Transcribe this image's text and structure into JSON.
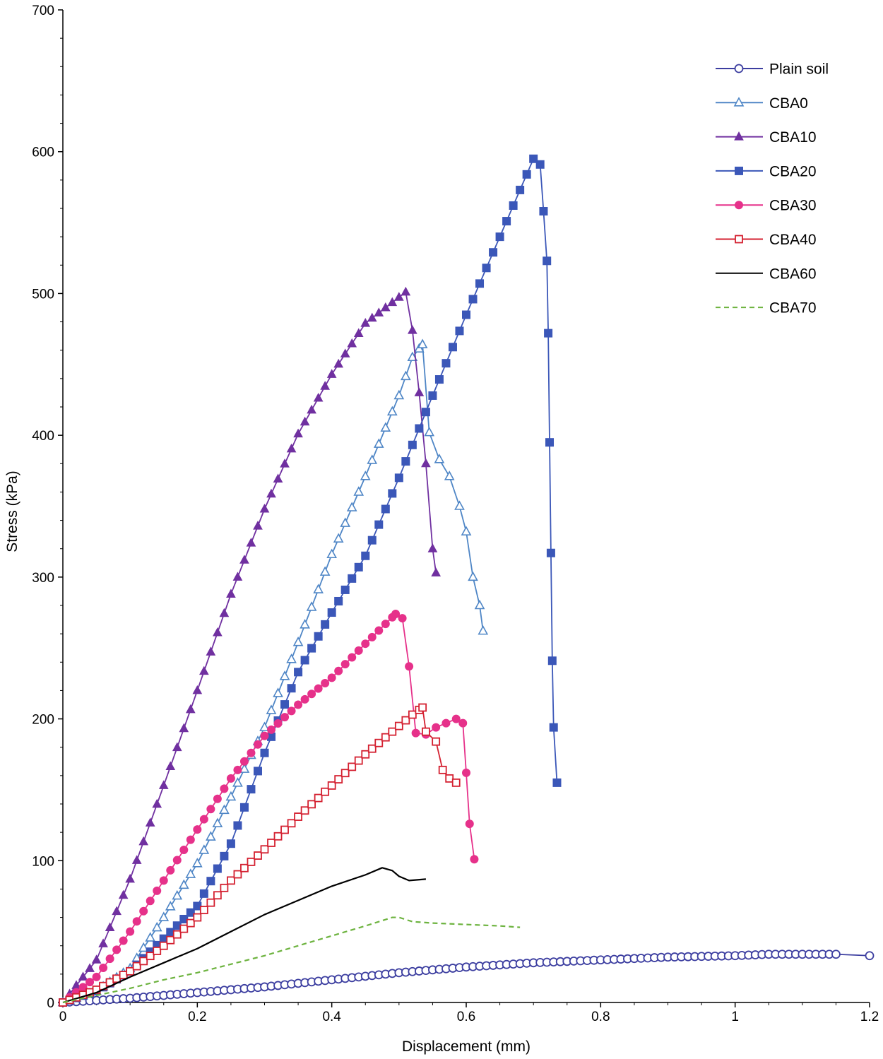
{
  "chart_data": {
    "type": "line",
    "title": "",
    "xlabel": "Displacement (mm)",
    "ylabel": "Stress  (kPa)",
    "xlim": [
      0,
      1.2
    ],
    "ylim": [
      0,
      700
    ],
    "x_ticks": [
      0,
      0.2,
      0.4,
      0.6,
      0.8,
      1,
      1.2
    ],
    "x_tick_labels": [
      "0",
      "0.2",
      "0.4",
      "0.6",
      "0.8",
      "1",
      "1.2"
    ],
    "y_ticks": [
      0,
      100,
      200,
      300,
      400,
      500,
      600,
      700
    ],
    "y_tick_labels": [
      "0",
      "100",
      "200",
      "300",
      "400",
      "500",
      "600",
      "700"
    ],
    "grid": false,
    "legend_position": "top-right",
    "series": [
      {
        "name": "Plain soil",
        "color": "#3c3ea0",
        "marker": "circle-open",
        "marker_step": 0.01,
        "dash": false,
        "points": [
          [
            0,
            0
          ],
          [
            0.1,
            3
          ],
          [
            0.2,
            7
          ],
          [
            0.3,
            11
          ],
          [
            0.4,
            16
          ],
          [
            0.5,
            21
          ],
          [
            0.6,
            25
          ],
          [
            0.7,
            28
          ],
          [
            0.8,
            30
          ],
          [
            0.9,
            32
          ],
          [
            1.0,
            33
          ],
          [
            1.05,
            34
          ],
          [
            1.1,
            34
          ],
          [
            1.15,
            34
          ],
          [
            1.2,
            33
          ]
        ]
      },
      {
        "name": "CBA0",
        "color": "#4f86c6",
        "marker": "triangle-open",
        "marker_step": 0.01,
        "dash": false,
        "points": [
          [
            0,
            0
          ],
          [
            0.05,
            8
          ],
          [
            0.1,
            24
          ],
          [
            0.15,
            60
          ],
          [
            0.2,
            98
          ],
          [
            0.25,
            145
          ],
          [
            0.3,
            194
          ],
          [
            0.35,
            254
          ],
          [
            0.4,
            316
          ],
          [
            0.45,
            371
          ],
          [
            0.5,
            428
          ],
          [
            0.52,
            455
          ],
          [
            0.535,
            464
          ],
          [
            0.545,
            402
          ],
          [
            0.56,
            383
          ],
          [
            0.575,
            371
          ],
          [
            0.59,
            350
          ],
          [
            0.6,
            332
          ],
          [
            0.61,
            300
          ],
          [
            0.62,
            280
          ],
          [
            0.625,
            262
          ]
        ]
      },
      {
        "name": "CBA10",
        "color": "#7030a0",
        "marker": "triangle-filled",
        "marker_step": 0.01,
        "dash": false,
        "points": [
          [
            0,
            0
          ],
          [
            0.05,
            30
          ],
          [
            0.1,
            87
          ],
          [
            0.15,
            153
          ],
          [
            0.2,
            220
          ],
          [
            0.25,
            288
          ],
          [
            0.3,
            348
          ],
          [
            0.35,
            401
          ],
          [
            0.4,
            443
          ],
          [
            0.45,
            479
          ],
          [
            0.51,
            501
          ],
          [
            0.52,
            474
          ],
          [
            0.53,
            430
          ],
          [
            0.54,
            380
          ],
          [
            0.55,
            320
          ],
          [
            0.555,
            303
          ]
        ]
      },
      {
        "name": "CBA20",
        "color": "#3b57b8",
        "marker": "square-filled",
        "marker_step": 0.01,
        "dash": false,
        "points": [
          [
            0,
            0
          ],
          [
            0.05,
            8
          ],
          [
            0.1,
            22
          ],
          [
            0.15,
            45
          ],
          [
            0.2,
            68
          ],
          [
            0.25,
            112
          ],
          [
            0.3,
            176
          ],
          [
            0.35,
            233
          ],
          [
            0.4,
            275
          ],
          [
            0.45,
            315
          ],
          [
            0.5,
            370
          ],
          [
            0.55,
            428
          ],
          [
            0.6,
            485
          ],
          [
            0.65,
            540
          ],
          [
            0.7,
            595
          ],
          [
            0.71,
            591
          ],
          [
            0.715,
            558
          ],
          [
            0.72,
            523
          ],
          [
            0.722,
            472
          ],
          [
            0.724,
            395
          ],
          [
            0.726,
            317
          ],
          [
            0.728,
            241
          ],
          [
            0.73,
            194
          ],
          [
            0.735,
            155
          ]
        ]
      },
      {
        "name": "CBA30",
        "color": "#e6318a",
        "marker": "circle-filled",
        "marker_step": 0.01,
        "dash": false,
        "points": [
          [
            0,
            0
          ],
          [
            0.05,
            18
          ],
          [
            0.1,
            50
          ],
          [
            0.15,
            86
          ],
          [
            0.2,
            122
          ],
          [
            0.25,
            158
          ],
          [
            0.3,
            188
          ],
          [
            0.35,
            210
          ],
          [
            0.4,
            229
          ],
          [
            0.45,
            253
          ],
          [
            0.495,
            274
          ],
          [
            0.505,
            271
          ],
          [
            0.515,
            237
          ],
          [
            0.525,
            190
          ],
          [
            0.54,
            189
          ],
          [
            0.555,
            194
          ],
          [
            0.57,
            197
          ],
          [
            0.585,
            200
          ],
          [
            0.595,
            197
          ],
          [
            0.6,
            162
          ],
          [
            0.605,
            126
          ],
          [
            0.612,
            101
          ]
        ]
      },
      {
        "name": "CBA40",
        "color": "#d42030",
        "marker": "square-open",
        "marker_step": 0.01,
        "dash": false,
        "points": [
          [
            0,
            0
          ],
          [
            0.05,
            9
          ],
          [
            0.1,
            22
          ],
          [
            0.15,
            40
          ],
          [
            0.2,
            60
          ],
          [
            0.25,
            86
          ],
          [
            0.3,
            108
          ],
          [
            0.35,
            131
          ],
          [
            0.4,
            153
          ],
          [
            0.45,
            175
          ],
          [
            0.5,
            195
          ],
          [
            0.52,
            203
          ],
          [
            0.535,
            208
          ],
          [
            0.54,
            191
          ],
          [
            0.555,
            184
          ],
          [
            0.565,
            164
          ],
          [
            0.575,
            158
          ],
          [
            0.585,
            155
          ]
        ]
      },
      {
        "name": "CBA60",
        "color": "#000000",
        "marker": "none",
        "dash": false,
        "points": [
          [
            0,
            0
          ],
          [
            0.05,
            7
          ],
          [
            0.1,
            18
          ],
          [
            0.15,
            28
          ],
          [
            0.2,
            38
          ],
          [
            0.25,
            50
          ],
          [
            0.3,
            62
          ],
          [
            0.35,
            72
          ],
          [
            0.4,
            82
          ],
          [
            0.45,
            90
          ],
          [
            0.475,
            95
          ],
          [
            0.49,
            93
          ],
          [
            0.5,
            89
          ],
          [
            0.515,
            86
          ],
          [
            0.54,
            87
          ]
        ]
      },
      {
        "name": "CBA70",
        "color": "#6db33f",
        "marker": "none",
        "dash": true,
        "points": [
          [
            0,
            0
          ],
          [
            0.05,
            5
          ],
          [
            0.1,
            10
          ],
          [
            0.15,
            16
          ],
          [
            0.2,
            21
          ],
          [
            0.25,
            27
          ],
          [
            0.3,
            33
          ],
          [
            0.35,
            40
          ],
          [
            0.4,
            47
          ],
          [
            0.45,
            54
          ],
          [
            0.49,
            60
          ],
          [
            0.5,
            60
          ],
          [
            0.52,
            57
          ],
          [
            0.55,
            56
          ],
          [
            0.6,
            55
          ],
          [
            0.65,
            54
          ],
          [
            0.68,
            53
          ]
        ]
      }
    ]
  }
}
